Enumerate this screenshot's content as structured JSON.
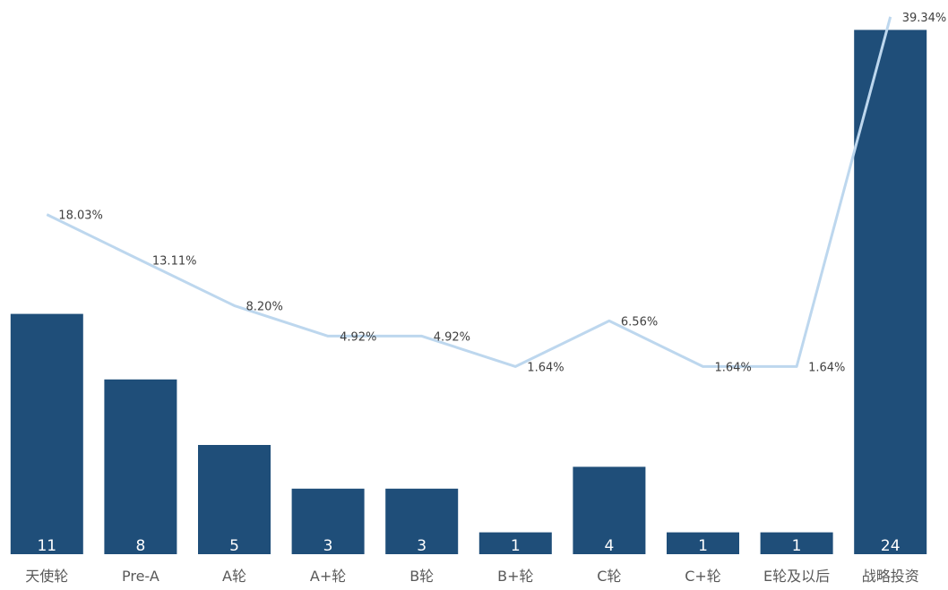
{
  "chart_data": {
    "type": "bar",
    "categories": [
      "天使轮",
      "Pre-A",
      "A轮",
      "A+轮",
      "B轮",
      "B+轮",
      "C轮",
      "C+轮",
      "E轮及以后",
      "战略投资"
    ],
    "series": [
      {
        "type": "bar",
        "values": [
          11,
          8,
          5,
          3,
          3,
          1,
          4,
          1,
          1,
          24
        ],
        "labels": [
          "11",
          "8",
          "5",
          "3",
          "3",
          "1",
          "4",
          "1",
          "1",
          "24"
        ]
      },
      {
        "type": "line",
        "values": [
          18.03,
          13.11,
          8.2,
          4.92,
          4.92,
          1.64,
          6.56,
          1.64,
          1.64,
          39.34
        ],
        "labels": [
          "18.03%",
          "13.11%",
          "8.20%",
          "4.92%",
          "4.92%",
          "1.64%",
          "6.56%",
          "1.64%",
          "1.64%",
          "39.34%"
        ]
      }
    ],
    "title": "",
    "xlabel": "",
    "ylabel": "",
    "legend": "none",
    "grid": false,
    "colors": {
      "bar": "#1f4e79",
      "line": "#bdd7ee",
      "bar_label": "#ffffff",
      "category_label": "#595959",
      "line_label": "#404040"
    }
  }
}
